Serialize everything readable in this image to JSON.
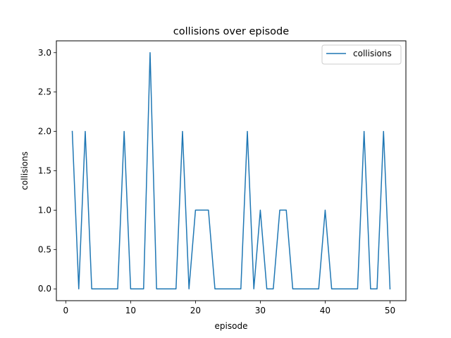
{
  "chart_data": {
    "type": "line",
    "title": "collisions over episode",
    "xlabel": "episode",
    "ylabel": "collisions",
    "xlim": [
      -1.45,
      52.45
    ],
    "ylim": [
      -0.15,
      3.15
    ],
    "xticks": [
      0,
      10,
      20,
      30,
      40,
      50
    ],
    "yticks": [
      0.0,
      0.5,
      1.0,
      1.5,
      2.0,
      2.5,
      3.0
    ],
    "xtick_labels": [
      "0",
      "10",
      "20",
      "30",
      "40",
      "50"
    ],
    "ytick_labels": [
      "0.0",
      "0.5",
      "1.0",
      "1.5",
      "2.0",
      "2.5",
      "3.0"
    ],
    "grid": false,
    "legend_position": "top-right",
    "series": [
      {
        "name": "collisions",
        "color": "#1f77b4",
        "x": [
          1,
          2,
          3,
          4,
          5,
          6,
          7,
          8,
          9,
          10,
          11,
          12,
          13,
          14,
          15,
          16,
          17,
          18,
          19,
          20,
          21,
          22,
          23,
          24,
          25,
          26,
          27,
          28,
          29,
          30,
          31,
          32,
          33,
          34,
          35,
          36,
          37,
          38,
          39,
          40,
          41,
          42,
          43,
          44,
          45,
          46,
          47,
          48,
          49,
          50
        ],
        "values": [
          2,
          0,
          2,
          0,
          0,
          0,
          0,
          0,
          2,
          0,
          0,
          0,
          3,
          0,
          0,
          0,
          0,
          2,
          0,
          1,
          1,
          1,
          0,
          0,
          0,
          0,
          0,
          2,
          0,
          1,
          0,
          0,
          1,
          1,
          0,
          0,
          0,
          0,
          0,
          1,
          0,
          0,
          0,
          0,
          0,
          2,
          0,
          0,
          2,
          0
        ]
      }
    ]
  }
}
